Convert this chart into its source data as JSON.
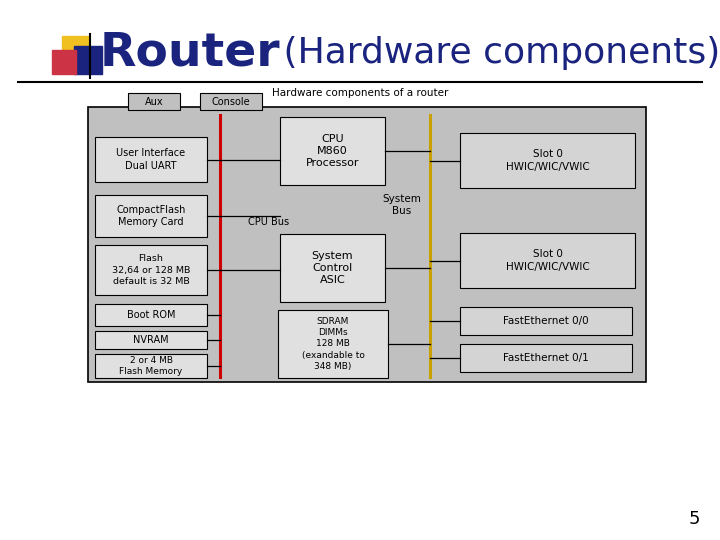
{
  "title_bold": "Router",
  "title_normal": " (Hardware components)",
  "diagram_title": "Hardware components of a router",
  "bg_color": "#ffffff",
  "slide_bg": "#c0c0c0",
  "box_light": "#e0e0e0",
  "box_edge": "#000000",
  "page_number": "5",
  "title_color": "#1a237e",
  "accent_yellow": "#f0c020",
  "accent_blue": "#1a237e",
  "accent_pink": "#cc3344",
  "bus_red": "#cc0000",
  "bus_yellow": "#c8a000"
}
